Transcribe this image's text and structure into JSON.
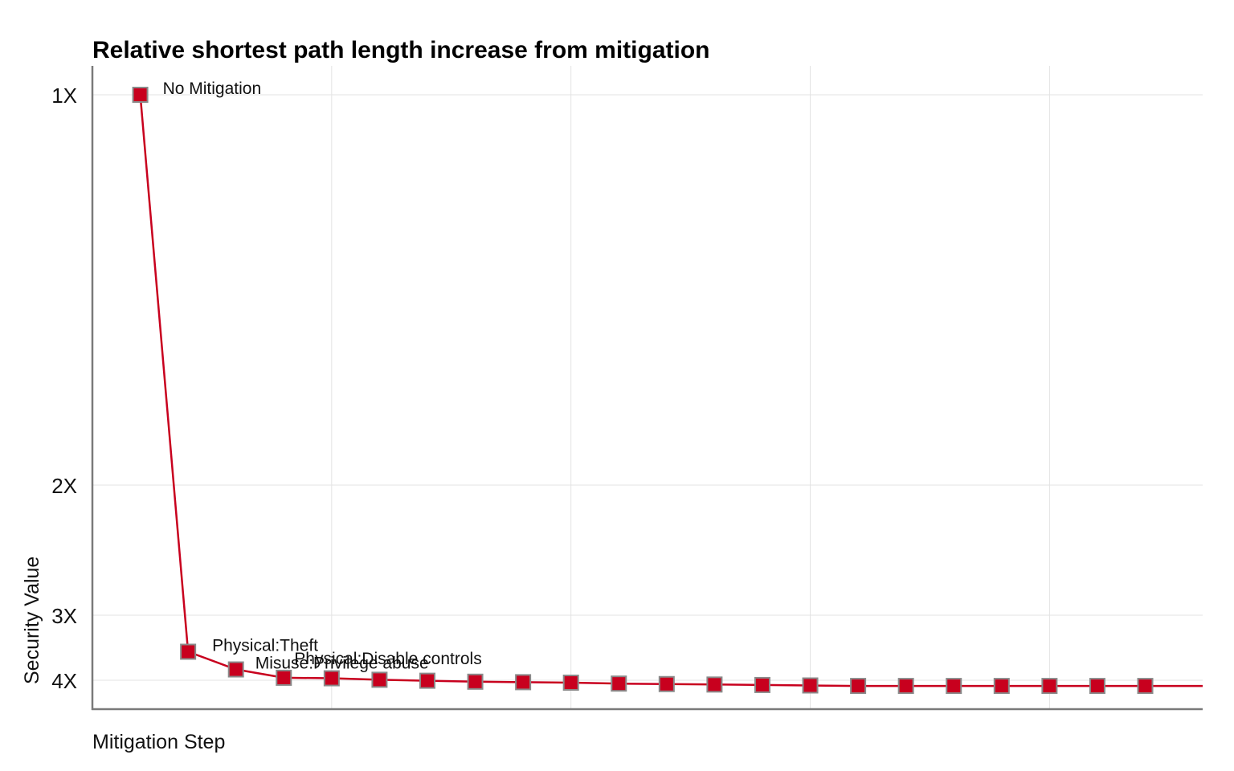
{
  "colors": {
    "series": "#c8001e",
    "marker_stroke": "#8a8a8a",
    "grid": "#e3e3e3",
    "axis": "#7a7a7a"
  },
  "chart_data": {
    "type": "line",
    "title": "Relative shortest path length increase from mitigation",
    "xlabel": "Mitigation Step",
    "ylabel": "Security Value",
    "x": [
      1,
      2,
      3,
      4,
      5,
      6,
      7,
      8,
      9,
      10,
      11,
      12,
      13,
      14,
      15,
      16,
      17,
      18,
      19,
      20,
      21,
      22
    ],
    "series": [
      {
        "values": [
          1.0,
          3.49,
          3.79,
          3.95,
          3.96,
          3.99,
          4.01,
          4.03,
          4.04,
          4.05,
          4.07,
          4.08,
          4.09,
          4.1,
          4.11,
          4.12,
          4.12,
          4.12,
          4.12,
          4.12,
          4.12,
          4.12
        ]
      }
    ],
    "point_labels": [
      {
        "index": 0,
        "text": "No Mitigation"
      },
      {
        "index": 1,
        "text": "Physical:Theft"
      },
      {
        "index": 2,
        "text": "Misuse:Privilege abuse"
      },
      {
        "index": 3,
        "text": "Physical:Disable controls"
      }
    ],
    "yticks": [
      {
        "value": 1,
        "label": "1X"
      },
      {
        "value": 2,
        "label": "2X"
      },
      {
        "value": 3,
        "label": "3X"
      },
      {
        "value": 4,
        "label": "4X"
      }
    ],
    "y_scale": "reciprocal",
    "y_inverted": true,
    "xlim": [
      0,
      23.2
    ],
    "x_gridlines": [
      5,
      10,
      15,
      20
    ],
    "grid": true,
    "legend": "none"
  }
}
